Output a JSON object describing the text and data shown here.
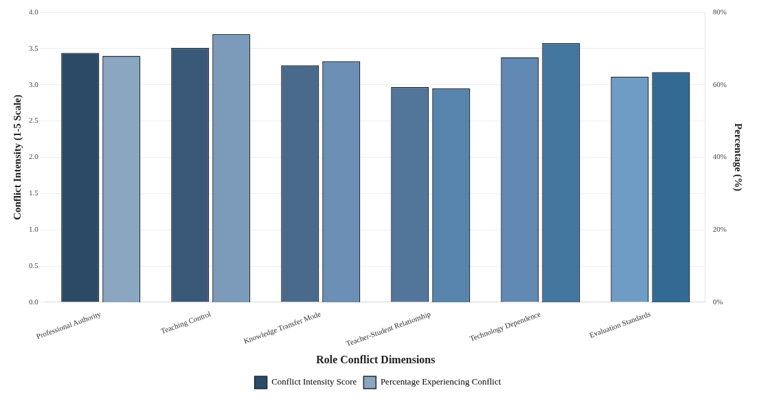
{
  "chart_data": {
    "type": "bar",
    "xlabel": "Role Conflict Dimensions",
    "ylabel": "Conflict Intensity (1-5 Scale)",
    "y2label": "Percentage (%)",
    "categories": [
      "Professional Authority",
      "Teaching Control",
      "Knowledge Transfer Mode",
      "Teacher-Student Relationship",
      "Technology Dependence",
      "Evaluation Standards"
    ],
    "series": [
      {
        "name": "Conflict Intensity Score",
        "color": "#2c4a66",
        "colors": [
          "#2c4a66",
          "#3a5878",
          "#4a6a8c",
          "#52759a",
          "#6189b3",
          "#6f9cc5"
        ],
        "values": [
          3.44,
          3.51,
          3.27,
          2.97,
          3.38,
          3.11
        ]
      },
      {
        "name": "Percentage Experiencing Conflict",
        "color": "#8aa6c1",
        "axis": "y2",
        "colors": [
          "#8aa6c1",
          "#7c9bbb",
          "#6b8fb5",
          "#5784ad",
          "#44779f",
          "#336a94"
        ],
        "values": [
          68,
          74,
          66.5,
          59,
          71.5,
          63.5
        ]
      }
    ],
    "ylim": [
      0,
      4
    ],
    "yticks": [
      {
        "value": 0,
        "label": "0.0"
      },
      {
        "value": 0.5,
        "label": "0.5"
      },
      {
        "value": 1,
        "label": "1.0"
      },
      {
        "value": 1.5,
        "label": "1.5"
      },
      {
        "value": 2,
        "label": "2.0"
      },
      {
        "value": 2.5,
        "label": "2.5"
      },
      {
        "value": 3,
        "label": "3.0"
      },
      {
        "value": 3.5,
        "label": "3.5"
      },
      {
        "value": 4,
        "label": "4.0"
      }
    ],
    "y2lim": [
      0,
      80
    ],
    "y2ticks": [
      {
        "value": 0,
        "label": "0%"
      },
      {
        "value": 20,
        "label": "20%"
      },
      {
        "value": 40,
        "label": "40%"
      },
      {
        "value": 60,
        "label": "60%"
      },
      {
        "value": 80,
        "label": "80%"
      }
    ],
    "grid": "y",
    "legend": "bottom"
  }
}
